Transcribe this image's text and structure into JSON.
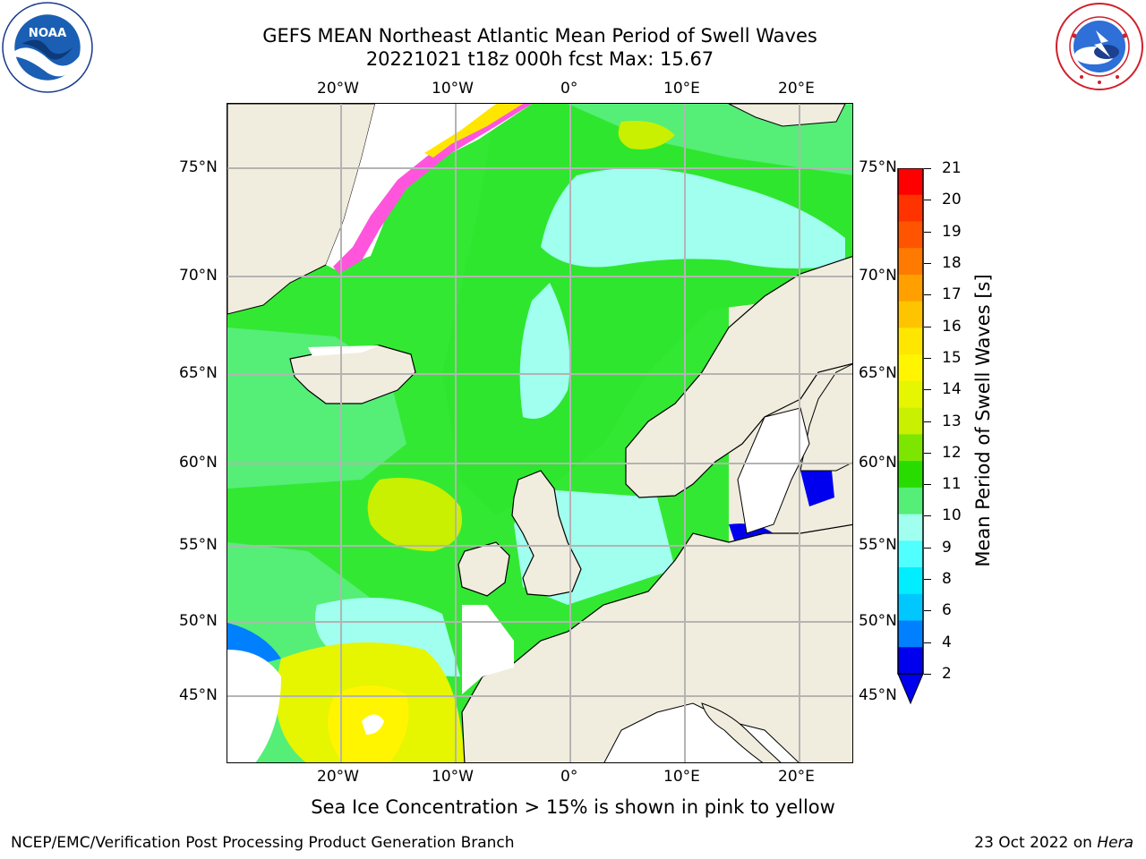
{
  "title": {
    "line1": "GEFS MEAN Northeast Atlantic Mean Period of Swell Waves",
    "line2": "20221021 t18z 000h fcst   Max: 15.67"
  },
  "map": {
    "lon_labels_top": [
      "20°W",
      "10°W",
      "0°",
      "10°E",
      "20°E"
    ],
    "lon_labels_bottom": [
      "20°W",
      "10°W",
      "0°",
      "10°E",
      "20°E"
    ],
    "lat_labels_left": [
      "75°N",
      "70°N",
      "65°N",
      "60°N",
      "55°N",
      "50°N",
      "45°N"
    ],
    "lat_labels_right": [
      "75°N",
      "70°N",
      "65°N",
      "60°N",
      "55°N",
      "50°N",
      "45°N"
    ],
    "colors": {
      "land": "#f0edde",
      "grid": "#b4b4b4",
      "coast": "#000000"
    }
  },
  "colorbar": {
    "label": "Mean Period of Swell Waves [s]",
    "ticks": [
      "21",
      "20",
      "19",
      "18",
      "17",
      "16",
      "15",
      "14",
      "13",
      "12",
      "11",
      "10",
      "9",
      "8",
      "6",
      "4",
      "2"
    ],
    "colors": [
      "#ff0000",
      "#ff3300",
      "#ff5500",
      "#ff7a00",
      "#ffa000",
      "#ffc400",
      "#ffe600",
      "#fff500",
      "#e6f500",
      "#c8f000",
      "#7de600",
      "#28dc00",
      "#55ee77",
      "#a0ffee",
      "#50ffff",
      "#00eeff",
      "#00c8ff",
      "#0080ff",
      "#0000ee"
    ]
  },
  "footnote": "Sea Ice Concentration > 15% is shown in pink to yellow",
  "credits": {
    "left": "NCEP/EMC/Verification Post Processing Product Generation Branch",
    "right_date": "23 Oct 2022 on",
    "right_host": "Hera"
  },
  "logos": {
    "left": "noaa-logo",
    "right": "nws-logo",
    "left_text": "NOAA"
  }
}
